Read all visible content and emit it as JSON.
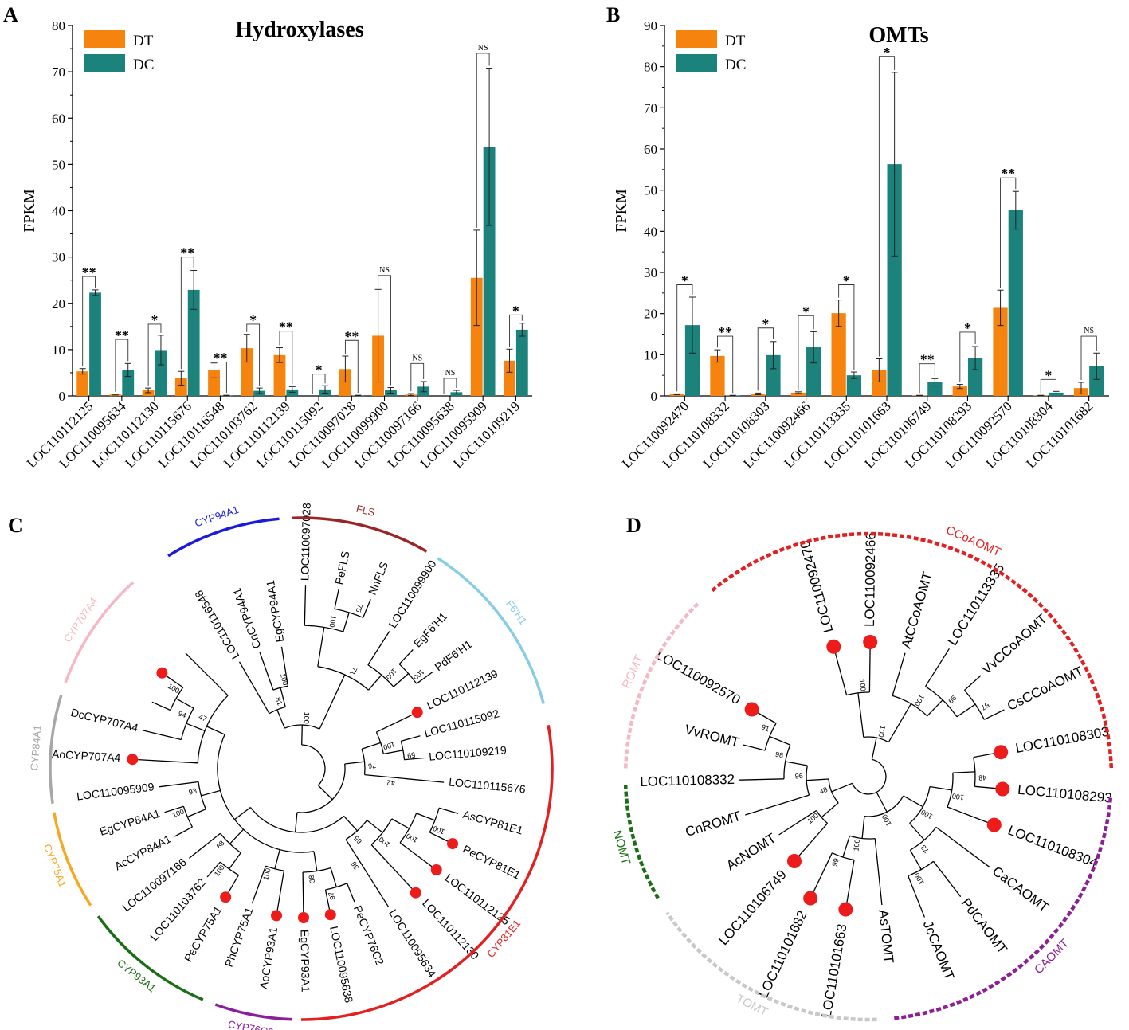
{
  "panel_labels": {
    "a": "A",
    "b": "B",
    "c": "C",
    "d": "D"
  },
  "colors": {
    "dt": "#f7830f",
    "dc": "#1b837b",
    "dot": "#ee1b1b",
    "axis": "#000000"
  },
  "chart_data": [
    {
      "id": "A",
      "type": "bar",
      "title": "Hydroxylases",
      "xlabel": "",
      "ylabel": "FPKM",
      "ylim": [
        0,
        80
      ],
      "yticks": [
        0,
        10,
        20,
        30,
        40,
        50,
        60,
        70,
        80
      ],
      "legend": "top-left",
      "categories": [
        "LOC110112125",
        "LOC110095634",
        "LOC110112130",
        "LOC110115676",
        "LOC110116548",
        "LOC110103762",
        "LOC110112139",
        "LOC110115092",
        "LOC110097028",
        "LOC110099900",
        "LOC110097166",
        "LOC110095638",
        "LOC110095909",
        "LOC110109219"
      ],
      "series": [
        {
          "name": "DT",
          "values": [
            5.3,
            0.3,
            1.2,
            3.8,
            5.5,
            10.3,
            8.8,
            0,
            5.8,
            13.0,
            0.3,
            0,
            25.5,
            7.6
          ],
          "errors": [
            0.6,
            0.1,
            0.5,
            1.5,
            1.6,
            3.0,
            1.6,
            0,
            2.8,
            10.0,
            0.2,
            0,
            10.3,
            2.5
          ]
        },
        {
          "name": "DC",
          "values": [
            22.3,
            5.6,
            9.9,
            22.9,
            0.1,
            1.1,
            1.4,
            1.4,
            0.1,
            1.2,
            2.0,
            0.8,
            53.8,
            14.3
          ],
          "errors": [
            0.6,
            1.4,
            3.2,
            4.2,
            0.05,
            0.6,
            0.6,
            0.8,
            0.05,
            0.6,
            1.1,
            0.4,
            17.0,
            1.4
          ]
        }
      ],
      "significance": [
        "**",
        "**",
        "*",
        "**",
        "**",
        "*",
        "**",
        "*",
        "**",
        "NS",
        "NS",
        "NS",
        "NS",
        "*"
      ],
      "sig_y": [
        25.8,
        12.2,
        15.5,
        30.0,
        7.3,
        15.5,
        14.0,
        4.7,
        12.0,
        26.0,
        7.0,
        3.8,
        74.0,
        17.5
      ]
    },
    {
      "id": "B",
      "type": "bar",
      "title": "OMTs",
      "xlabel": "",
      "ylabel": "FPKM",
      "ylim": [
        0,
        90
      ],
      "yticks": [
        0,
        10,
        20,
        30,
        40,
        50,
        60,
        70,
        80,
        90
      ],
      "legend": "top-left",
      "categories": [
        "LOC110092470",
        "LOC110108332",
        "LOC110108303",
        "LOC110092466",
        "LOC110113335",
        "LOC110101663",
        "LOC110106749",
        "LOC110108293",
        "LOC110092570",
        "LOC110108304",
        "LOC110101682"
      ],
      "series": [
        {
          "name": "DT",
          "values": [
            0.4,
            9.7,
            0.5,
            0.8,
            20.1,
            6.2,
            0.1,
            2.3,
            21.4,
            0.1,
            1.9
          ],
          "errors": [
            0.1,
            1.5,
            0.2,
            0.2,
            3.2,
            2.8,
            0.05,
            0.5,
            4.3,
            0.05,
            1.4
          ]
        },
        {
          "name": "DC",
          "values": [
            17.2,
            0.1,
            9.9,
            11.8,
            5.0,
            56.3,
            3.3,
            9.2,
            45.1,
            0.8,
            7.2
          ],
          "errors": [
            6.8,
            0.05,
            3.3,
            3.8,
            0.8,
            22.3,
            0.9,
            2.8,
            4.6,
            0.3,
            3.2
          ]
        }
      ],
      "significance": [
        "*",
        "**",
        "*",
        "*",
        "*",
        "*",
        "**",
        "*",
        "**",
        "*",
        "NS"
      ],
      "sig_y": [
        27.0,
        14.5,
        16.5,
        19.5,
        27.0,
        82.5,
        7.8,
        15.5,
        53.0,
        4.0,
        14.5
      ]
    }
  ],
  "tree_c": {
    "clades": [
      "CYP94A1",
      "FLS",
      "F6'H1",
      "CYP81E1",
      "CYP76C2",
      "CYP93A1",
      "CYP75A1",
      "CYP84A1",
      "CYP707A4"
    ],
    "clade_colors": [
      "#1a1adc",
      "#9b2525",
      "#87cde8",
      "#e41f1f",
      "#8a1f9e",
      "#1b6e16",
      "#f7a823",
      "#a7a7a7",
      "#f6b8c4"
    ],
    "leaves": [
      "LOC110116548",
      "CnCYP94A1",
      "EgCYP94A1",
      "LOC110097028",
      "PeFLS",
      "NnFLS",
      "LOC110099900",
      "EgF6'H1",
      "PdF6'H1",
      "LOC110112139",
      "LOC110115092",
      "LOC110109219",
      "LOC110115676",
      "AsCYP81E1",
      "PeCYP81E1",
      "LOC110112125",
      "LOC110112130",
      "LOC110095634",
      "PeCYP76C2",
      "LOC110095638",
      "EgCYP93A1",
      "AoCYP93A1",
      "PhCYP75A1",
      "PeCYP75A1",
      "LOC110103762",
      "LOC110097166",
      "AcCYP84A1",
      "EgCYP84A1",
      "LOC110095909",
      "AoCYP707A4",
      "DcCYP707A4"
    ],
    "bootstrap": [
      "100",
      "81",
      "75",
      "100",
      "100",
      "100",
      "71",
      "100",
      "59",
      "100",
      "42",
      "76",
      "100",
      "100",
      "100",
      "38",
      "65",
      "97",
      "38",
      "100",
      "100",
      "88",
      "100",
      "93",
      "100",
      "94",
      "47"
    ]
  },
  "tree_d": {
    "clades": [
      "CCoAOMT",
      "CAOMT",
      "TOMT",
      "NOMT",
      "ROMT"
    ],
    "clade_colors": [
      "#e41f1f",
      "#8c1f96",
      "#c8c8c8",
      "#1b6e16",
      "#f6b8c4"
    ],
    "leaves": [
      "LOC110092470",
      "LOC110092466",
      "AtCCoAOMT",
      "LOC110113335",
      "VvCCoAOMT",
      "CsCCoAOMT",
      "LOC110108303",
      "LOC110108293",
      "LOC110108304",
      "CaCAOMT",
      "PdCAOMT",
      "JcCAOMT",
      "AsTOMT",
      "LOC110101663",
      "LOC110101682",
      "LOC110106749",
      "AcNOMT",
      "CnROMT",
      "LOC110108332",
      "VvROMT",
      "LOC110092570"
    ],
    "bootstrap": [
      "100",
      "57",
      "99",
      "100",
      "100",
      "48",
      "100",
      "100",
      "73",
      "100",
      "99",
      "100",
      "100",
      "100",
      "91",
      "98",
      "96",
      "48",
      "100"
    ]
  }
}
